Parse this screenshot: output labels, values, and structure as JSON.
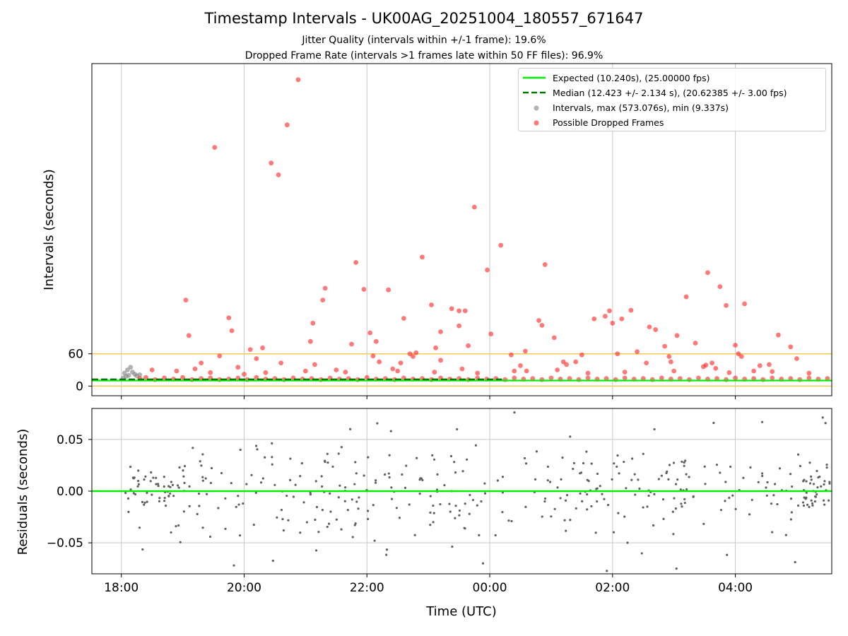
{
  "title": "Timestamp Intervals - UK00AG_20251004_180557_671647",
  "subtitle_jitter": "Jitter Quality (intervals within +/-1 frame): 19.6%",
  "subtitle_dropped": "Dropped Frame Rate (intervals >1 frames late within 50 FF files): 96.9%",
  "colors": {
    "expected": "#00ee00",
    "median": "#007a00",
    "intervals": "#808080",
    "dropped": "#ff2020",
    "threshold": "#f5c842",
    "grid": "#c8c8c8",
    "residuals": "#606060"
  },
  "chart_data": [
    {
      "type": "scatter",
      "panel": "intervals",
      "xlabel": "Time (UTC)",
      "ylabel": "Intervals (seconds)",
      "x_unit": "hours since 17:00 UTC (ticks every 2h)",
      "xlim": [
        17.52,
        29.57
      ],
      "ylim": [
        -18,
        600
      ],
      "grid": true,
      "y_ticks": [
        0,
        60
      ],
      "threshold_lines": [
        0,
        60
      ],
      "legend": {
        "position": "top-right",
        "entries": [
          "Expected (10.240s), (25.00000 fps)",
          "Median (12.423 +/- 2.134 s), (20.62385 +/- 3.00 fps)",
          "Intervals, max (573.076s), min (9.337s)",
          "Possible Dropped Frames"
        ]
      },
      "expected_value": 10.24,
      "median_value": 12.423,
      "interval_points": [
        [
          18.05,
          24
        ],
        [
          18.1,
          30
        ],
        [
          18.15,
          35
        ],
        [
          18.12,
          20
        ],
        [
          18.18,
          26
        ],
        [
          18.22,
          22
        ],
        [
          18.08,
          18
        ],
        [
          18.25,
          19
        ],
        [
          18.3,
          21
        ],
        [
          18.03,
          15
        ]
      ],
      "dropped_points": [
        [
          19.52,
          444
        ],
        [
          20.44,
          415
        ],
        [
          20.56,
          393
        ],
        [
          20.7,
          486
        ],
        [
          20.88,
          570
        ],
        [
          19.05,
          160
        ],
        [
          19.1,
          94
        ],
        [
          19.75,
          127
        ],
        [
          19.8,
          103
        ],
        [
          19.6,
          56
        ],
        [
          19.9,
          35
        ],
        [
          20.1,
          68
        ],
        [
          20.3,
          71
        ],
        [
          21.08,
          83
        ],
        [
          21.12,
          117
        ],
        [
          21.15,
          40
        ],
        [
          21.28,
          160
        ],
        [
          21.32,
          182
        ],
        [
          21.82,
          230
        ],
        [
          21.75,
          78
        ],
        [
          21.95,
          180
        ],
        [
          22.05,
          99
        ],
        [
          22.15,
          83
        ],
        [
          22.35,
          179
        ],
        [
          22.6,
          126
        ],
        [
          22.9,
          240
        ],
        [
          22.75,
          55
        ],
        [
          23.05,
          151
        ],
        [
          23.12,
          71
        ],
        [
          23.2,
          101
        ],
        [
          23.38,
          144
        ],
        [
          23.5,
          140
        ],
        [
          23.6,
          140
        ],
        [
          23.75,
          333
        ],
        [
          23.65,
          75
        ],
        [
          23.5,
          112
        ],
        [
          23.96,
          216
        ],
        [
          24.02,
          97
        ],
        [
          24.18,
          262
        ],
        [
          24.35,
          58
        ],
        [
          24.58,
          65
        ],
        [
          24.8,
          122
        ],
        [
          24.85,
          113
        ],
        [
          24.9,
          226
        ],
        [
          25.05,
          90
        ],
        [
          25.2,
          45
        ],
        [
          25.5,
          58
        ],
        [
          25.7,
          125
        ],
        [
          25.88,
          130
        ],
        [
          25.95,
          140
        ],
        [
          26.0,
          117
        ],
        [
          26.15,
          125
        ],
        [
          26.08,
          60
        ],
        [
          26.3,
          141
        ],
        [
          26.4,
          64
        ],
        [
          26.6,
          110
        ],
        [
          26.7,
          105
        ],
        [
          26.85,
          74
        ],
        [
          27.05,
          94
        ],
        [
          27.2,
          166
        ],
        [
          27.35,
          80
        ],
        [
          27.55,
          211
        ],
        [
          27.75,
          185
        ],
        [
          27.85,
          150
        ],
        [
          28.0,
          76
        ],
        [
          28.15,
          153
        ],
        [
          28.05,
          60
        ],
        [
          28.1,
          55
        ],
        [
          28.4,
          38
        ],
        [
          28.7,
          95
        ],
        [
          28.9,
          73
        ],
        [
          29.0,
          51
        ],
        [
          19.3,
          43
        ],
        [
          20.2,
          51
        ],
        [
          20.6,
          43
        ],
        [
          21.5,
          30
        ],
        [
          22.1,
          56
        ],
        [
          22.2,
          45
        ],
        [
          22.42,
          32
        ],
        [
          22.55,
          43
        ],
        [
          22.7,
          60
        ],
        [
          22.8,
          62
        ],
        [
          23.2,
          48
        ],
        [
          23.55,
          32
        ],
        [
          24.5,
          38
        ],
        [
          24.6,
          28
        ],
        [
          25.4,
          45
        ],
        [
          25.25,
          40
        ],
        [
          26.55,
          43
        ],
        [
          26.92,
          55
        ],
        [
          26.95,
          45
        ],
        [
          27.52,
          39
        ],
        [
          27.48,
          36
        ],
        [
          27.62,
          43
        ],
        [
          27.68,
          33
        ],
        [
          28.3,
          28
        ],
        [
          28.55,
          40
        ],
        [
          18.5,
          30
        ],
        [
          18.9,
          28
        ],
        [
          19.2,
          32
        ],
        [
          19.45,
          25
        ],
        [
          20.0,
          22
        ],
        [
          20.35,
          25
        ],
        [
          21.0,
          28
        ],
        [
          21.65,
          26
        ],
        [
          22.5,
          28
        ],
        [
          23.1,
          26
        ],
        [
          23.8,
          24
        ],
        [
          24.4,
          28
        ],
        [
          25.1,
          30
        ],
        [
          25.6,
          24
        ],
        [
          26.2,
          26
        ],
        [
          27.0,
          28
        ],
        [
          27.9,
          25
        ],
        [
          28.6,
          27
        ],
        [
          29.2,
          24
        ],
        [
          18.3,
          14
        ],
        [
          18.4,
          16
        ],
        [
          18.55,
          12
        ],
        [
          18.7,
          15
        ],
        [
          18.85,
          13
        ],
        [
          19.0,
          16
        ],
        [
          19.15,
          12
        ],
        [
          19.3,
          14
        ],
        [
          19.45,
          15
        ],
        [
          19.6,
          12
        ],
        [
          19.75,
          13
        ],
        [
          19.9,
          15
        ],
        [
          20.05,
          12
        ],
        [
          20.2,
          16
        ],
        [
          20.35,
          13
        ],
        [
          20.5,
          14
        ],
        [
          20.65,
          12
        ],
        [
          20.8,
          15
        ],
        [
          20.95,
          13
        ],
        [
          21.1,
          14
        ],
        [
          21.25,
          12
        ],
        [
          21.4,
          15
        ],
        [
          21.55,
          13
        ],
        [
          21.7,
          14
        ],
        [
          21.85,
          12
        ],
        [
          22.0,
          16
        ],
        [
          22.15,
          13
        ],
        [
          22.3,
          14
        ],
        [
          22.45,
          12
        ],
        [
          22.6,
          15
        ],
        [
          22.75,
          13
        ],
        [
          22.9,
          14
        ],
        [
          23.05,
          12
        ],
        [
          23.2,
          15
        ],
        [
          23.35,
          13
        ],
        [
          23.5,
          14
        ],
        [
          23.65,
          12
        ],
        [
          23.8,
          15
        ],
        [
          23.95,
          13
        ],
        [
          24.1,
          14
        ],
        [
          24.25,
          12
        ],
        [
          24.4,
          15
        ],
        [
          24.55,
          13
        ],
        [
          24.7,
          14
        ],
        [
          24.85,
          12
        ],
        [
          25.0,
          15
        ],
        [
          25.15,
          13
        ],
        [
          25.3,
          14
        ],
        [
          25.45,
          12
        ],
        [
          25.6,
          15
        ],
        [
          25.75,
          13
        ],
        [
          25.9,
          14
        ],
        [
          26.05,
          12
        ],
        [
          26.2,
          15
        ],
        [
          26.35,
          13
        ],
        [
          26.5,
          14
        ],
        [
          26.65,
          12
        ],
        [
          26.8,
          15
        ],
        [
          26.95,
          13
        ],
        [
          27.1,
          14
        ],
        [
          27.25,
          12
        ],
        [
          27.4,
          15
        ],
        [
          27.55,
          13
        ],
        [
          27.7,
          14
        ],
        [
          27.85,
          12
        ],
        [
          28.0,
          15
        ],
        [
          28.15,
          13
        ],
        [
          28.3,
          14
        ],
        [
          28.45,
          12
        ],
        [
          28.6,
          15
        ],
        [
          28.75,
          13
        ],
        [
          28.9,
          14
        ],
        [
          29.05,
          12
        ],
        [
          29.2,
          15
        ],
        [
          29.35,
          13
        ],
        [
          29.5,
          14
        ]
      ]
    },
    {
      "type": "scatter",
      "panel": "residuals",
      "xlabel": "Time (UTC)",
      "ylabel": "Residuals (seconds)",
      "xlim": [
        17.52,
        29.57
      ],
      "ylim": [
        -0.08,
        0.08
      ],
      "grid": true,
      "x_ticks": [
        18,
        20,
        22,
        24,
        26,
        28
      ],
      "x_tick_labels": [
        "18:00",
        "20:00",
        "22:00",
        "00:00",
        "02:00",
        "04:00"
      ],
      "y_ticks": [
        0.05,
        0.0,
        -0.05
      ],
      "y_tick_labels": [
        "0.05",
        "0.00",
        "−0.05"
      ],
      "zero_line": 0.0
    }
  ]
}
